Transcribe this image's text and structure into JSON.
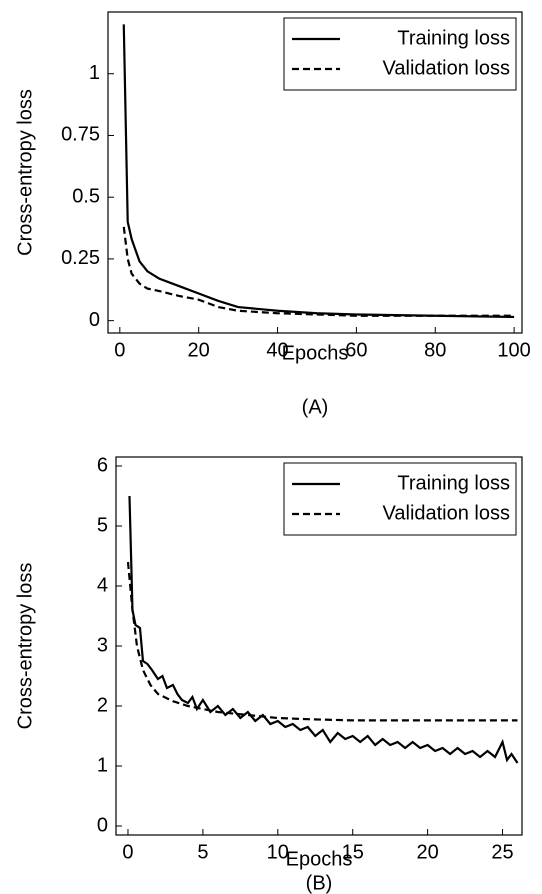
{
  "chart_data": [
    {
      "type": "line",
      "caption": "(A)",
      "xlabel": "Epochs",
      "ylabel": "Cross-entropy loss",
      "xlim": [
        -3,
        102
      ],
      "xticks": [
        0,
        20,
        40,
        60,
        80,
        100
      ],
      "ylim": [
        -0.05,
        1.25
      ],
      "yticks": [
        0,
        0.25,
        0.5,
        0.75,
        1
      ],
      "legend": "upper right",
      "series": [
        {
          "name": "Training loss",
          "color": "#000000",
          "linestyle": "solid",
          "x": [
            1,
            2,
            3,
            5,
            7,
            10,
            15,
            20,
            25,
            30,
            40,
            50,
            60,
            80,
            100
          ],
          "values": [
            1.2,
            0.4,
            0.33,
            0.24,
            0.2,
            0.17,
            0.14,
            0.11,
            0.08,
            0.055,
            0.04,
            0.03,
            0.025,
            0.02,
            0.015
          ]
        },
        {
          "name": "Validation loss",
          "color": "#000000",
          "linestyle": "dashed",
          "x": [
            1,
            2,
            3,
            5,
            7,
            10,
            15,
            20,
            25,
            30,
            40,
            50,
            60,
            80,
            100
          ],
          "values": [
            0.38,
            0.25,
            0.19,
            0.15,
            0.13,
            0.12,
            0.1,
            0.085,
            0.055,
            0.04,
            0.03,
            0.025,
            0.02,
            0.02,
            0.02
          ]
        }
      ]
    },
    {
      "type": "line",
      "caption": "(B)",
      "xlabel": "Epochs",
      "ylabel": "Cross-entropy loss",
      "xlim": [
        -0.8,
        26.3
      ],
      "xticks": [
        0,
        5,
        10,
        15,
        20,
        25
      ],
      "ylim": [
        -0.15,
        6.15
      ],
      "yticks": [
        0,
        1,
        2,
        3,
        4,
        5,
        6
      ],
      "legend": "upper right",
      "series": [
        {
          "name": "Training loss",
          "color": "#000000",
          "linestyle": "solid",
          "x": [
            0.1,
            0.3,
            0.5,
            0.8,
            1,
            1.3,
            1.6,
            2,
            2.3,
            2.6,
            3,
            3.3,
            3.6,
            4,
            4.3,
            4.6,
            5,
            5.5,
            6,
            6.5,
            7,
            7.5,
            8,
            8.5,
            9,
            9.5,
            10,
            10.5,
            11,
            11.5,
            12,
            12.5,
            13,
            13.5,
            14,
            14.5,
            15,
            15.5,
            16,
            16.5,
            17,
            17.5,
            18,
            18.5,
            19,
            19.5,
            20,
            20.5,
            21,
            21.5,
            22,
            22.5,
            23,
            23.5,
            24,
            24.5,
            25,
            25.3,
            25.6,
            26
          ],
          "values": [
            5.5,
            3.6,
            3.35,
            3.3,
            2.75,
            2.7,
            2.6,
            2.45,
            2.5,
            2.3,
            2.35,
            2.2,
            2.1,
            2.05,
            2.15,
            1.95,
            2.1,
            1.9,
            2.0,
            1.85,
            1.95,
            1.8,
            1.9,
            1.75,
            1.85,
            1.7,
            1.75,
            1.65,
            1.7,
            1.6,
            1.65,
            1.5,
            1.6,
            1.4,
            1.55,
            1.45,
            1.5,
            1.4,
            1.5,
            1.35,
            1.45,
            1.35,
            1.4,
            1.3,
            1.4,
            1.3,
            1.35,
            1.25,
            1.3,
            1.2,
            1.3,
            1.2,
            1.25,
            1.15,
            1.25,
            1.15,
            1.4,
            1.1,
            1.2,
            1.05
          ]
        },
        {
          "name": "Validation loss",
          "color": "#000000",
          "linestyle": "dashed",
          "x": [
            0,
            0.3,
            0.6,
            1,
            1.5,
            2,
            3,
            4,
            5,
            6,
            8,
            10,
            12,
            15,
            20,
            26
          ],
          "values": [
            4.4,
            3.6,
            3.0,
            2.6,
            2.35,
            2.2,
            2.08,
            2.0,
            1.95,
            1.9,
            1.85,
            1.8,
            1.78,
            1.76,
            1.76,
            1.76
          ]
        }
      ]
    }
  ]
}
